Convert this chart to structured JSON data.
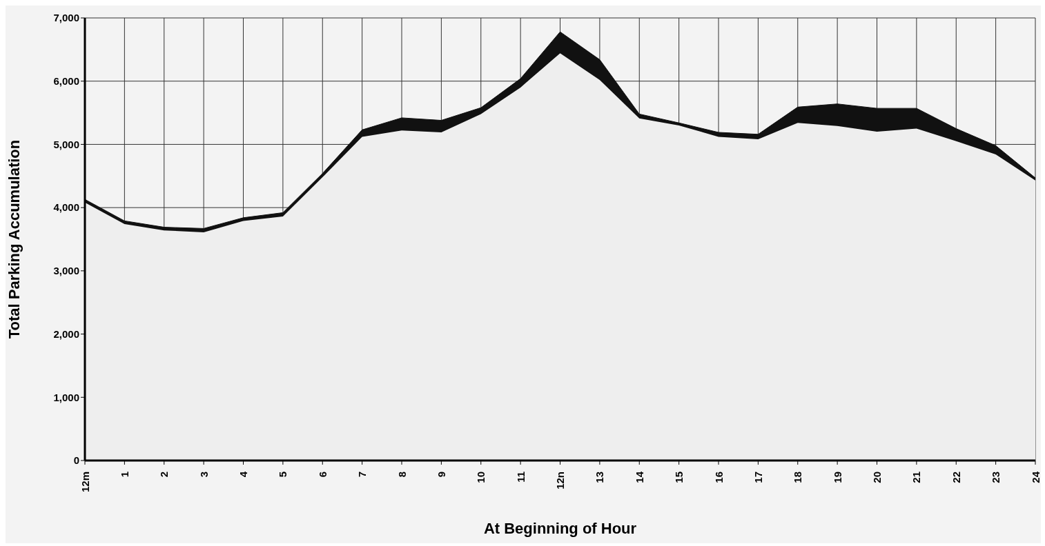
{
  "chart_data": {
    "type": "area",
    "stacked": true,
    "xlabel": "At Beginning of Hour",
    "ylabel": "Total Parking Accumulation",
    "categories": [
      "12m",
      "1",
      "2",
      "3",
      "4",
      "5",
      "6",
      "7",
      "8",
      "9",
      "10",
      "11",
      "12n",
      "13",
      "14",
      "15",
      "16",
      "17",
      "18",
      "19",
      "20",
      "21",
      "22",
      "23",
      "24"
    ],
    "series": [
      {
        "color": "#eeeeee",
        "values": [
          4080,
          3740,
          3640,
          3610,
          3790,
          3860,
          4480,
          5120,
          5220,
          5190,
          5480,
          5900,
          6440,
          6020,
          5410,
          5300,
          5120,
          5080,
          5340,
          5290,
          5200,
          5250,
          5050,
          4840,
          4430
        ]
      },
      {
        "color": "#111111",
        "values": [
          50,
          50,
          50,
          60,
          50,
          60,
          60,
          110,
          200,
          190,
          100,
          140,
          340,
          320,
          70,
          40,
          70,
          80,
          250,
          350,
          370,
          320,
          200,
          140,
          40
        ]
      }
    ],
    "ylim": [
      0,
      7000
    ],
    "yticks": [
      {
        "value": 0,
        "label": "0"
      },
      {
        "value": 1000,
        "label": "1,000"
      },
      {
        "value": 2000,
        "label": "2,000"
      },
      {
        "value": 3000,
        "label": "3,000"
      },
      {
        "value": 4000,
        "label": "4,000"
      },
      {
        "value": 5000,
        "label": "5,000"
      },
      {
        "value": 6000,
        "label": "6,000"
      },
      {
        "value": 7000,
        "label": "7,000"
      }
    ],
    "grid": true
  }
}
